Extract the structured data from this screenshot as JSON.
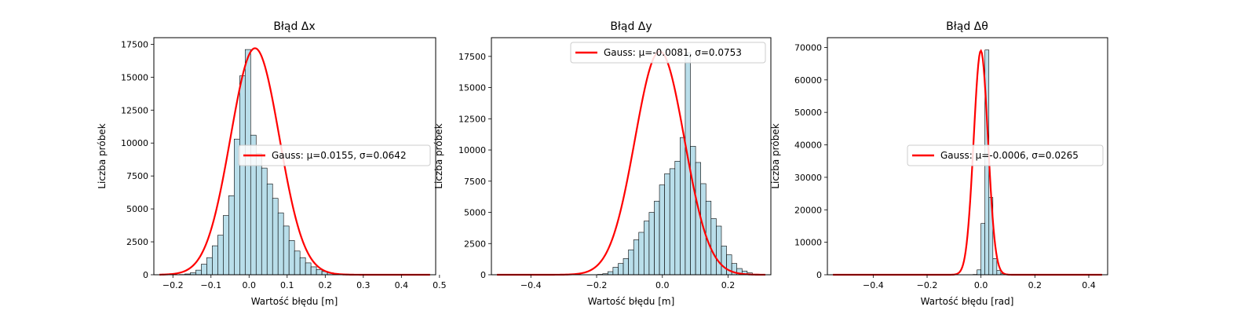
{
  "colors": {
    "bar_fill": "#add8e6",
    "bar_edge": "#000000",
    "gauss": "#ff0000",
    "frame": "#000000"
  },
  "chart_data": [
    {
      "type": "bar",
      "title": "Błąd Δx",
      "xlabel": "Wartość błędu [m]",
      "ylabel": "Liczba próbek",
      "xlim": [
        -0.25,
        0.49
      ],
      "ylim": [
        0,
        18000
      ],
      "xticks": [
        -0.2,
        -0.1,
        0.0,
        0.1,
        0.2,
        0.3,
        0.4,
        0.5
      ],
      "xtick_labels": [
        "−0.2",
        "−0.1",
        "0.0",
        "0.1",
        "0.2",
        "0.3",
        "0.4",
        "0.5"
      ],
      "yticks": [
        0,
        2500,
        5000,
        7500,
        10000,
        12500,
        15000,
        17500
      ],
      "ytick_labels": [
        "0",
        "2500",
        "5000",
        "7500",
        "10000",
        "12500",
        "15000",
        "17500"
      ],
      "bin_start": -0.2407,
      "bin_width": 0.0144,
      "bars": [
        0,
        0,
        0,
        0,
        20,
        60,
        150,
        350,
        800,
        1300,
        2200,
        3000,
        4500,
        6000,
        10300,
        15100,
        17100,
        10600,
        9200,
        8100,
        6900,
        5800,
        4700,
        3700,
        2600,
        1800,
        1300,
        900,
        600,
        400,
        250,
        150,
        100,
        70,
        50,
        30,
        20,
        15,
        10,
        5,
        5,
        3,
        2,
        2,
        2,
        2,
        1,
        1,
        1,
        1
      ],
      "gauss": {
        "mu": 0.0155,
        "sigma": 0.0642,
        "peak": 17200
      },
      "legend": {
        "label": "Gauss: μ=0.0155, σ=0.0642",
        "loc": "center right"
      },
      "grid": false
    },
    {
      "type": "bar",
      "title": "Błąd Δy",
      "xlabel": "Wartość błędu [m]",
      "ylabel": "Liczba próbek",
      "xlim": [
        -0.52,
        0.33
      ],
      "ylim": [
        0,
        19000
      ],
      "xticks": [
        -0.4,
        -0.2,
        0.0,
        0.2
      ],
      "xtick_labels": [
        "−0.4",
        "−0.2",
        "0.0",
        "0.2"
      ],
      "yticks": [
        0,
        2500,
        5000,
        7500,
        10000,
        12500,
        15000,
        17500
      ],
      "ytick_labels": [
        "0",
        "2500",
        "5000",
        "7500",
        "10000",
        "12500",
        "15000",
        "17500"
      ],
      "bin_start": -0.4799,
      "bin_width": 0.0157,
      "bars": [
        0,
        0,
        0,
        0,
        0,
        0,
        0,
        0,
        0,
        0,
        0,
        0,
        0,
        0,
        0,
        2,
        5,
        10,
        30,
        80,
        250,
        600,
        900,
        1300,
        2000,
        2800,
        3400,
        4300,
        5000,
        5900,
        7200,
        8100,
        8500,
        9100,
        11000,
        17800,
        10300,
        9000,
        7300,
        5900,
        4500,
        3900,
        2300,
        1600,
        900,
        500,
        300,
        150,
        50,
        20
      ],
      "gauss": {
        "mu": -0.0081,
        "sigma": 0.0753,
        "peak": 17900
      },
      "legend": {
        "label": "Gauss: μ=-0.0081, σ=0.0753",
        "loc": "upper right"
      },
      "grid": false
    },
    {
      "type": "bar",
      "title": "Błąd Δθ",
      "xlabel": "Wartość błędu [rad]",
      "ylabel": "Liczba próbek",
      "xlim": [
        -0.57,
        0.47
      ],
      "ylim": [
        0,
        73000
      ],
      "xticks": [
        -0.4,
        -0.2,
        0.0,
        0.2,
        0.4
      ],
      "xtick_labels": [
        "−0.4",
        "−0.2",
        "0.0",
        "0.2",
        "0.4"
      ],
      "yticks": [
        0,
        10000,
        20000,
        30000,
        40000,
        50000,
        60000,
        70000
      ],
      "ytick_labels": [
        "0",
        "10000",
        "20000",
        "30000",
        "40000",
        "50000",
        "60000",
        "70000"
      ],
      "bin_start": -0.0294,
      "bin_width": 0.0147,
      "bars": [
        100,
        1500,
        15800,
        69200,
        23800,
        5000,
        1300,
        300
      ],
      "gauss": {
        "mu": -0.0006,
        "sigma": 0.0265,
        "peak": 69000
      },
      "legend": {
        "label": "Gauss: μ=-0.0006, σ=0.0265",
        "loc": "center right"
      },
      "grid": false
    }
  ]
}
